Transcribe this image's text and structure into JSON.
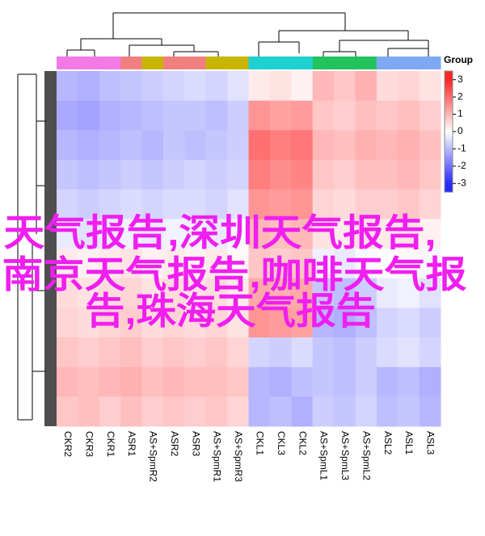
{
  "chart_data": {
    "type": "heatmap",
    "columns": [
      "CKR2",
      "CKR3",
      "CKR1",
      "ASR1",
      "AS+SpmR2",
      "ASR2",
      "ASR3",
      "AS+SpmR1",
      "AS+SpmR3",
      "CKL1",
      "CKL3",
      "CKL2",
      "AS+SpmL1",
      "AS+SpmL3",
      "AS+SpmL2",
      "ASL2",
      "ASL1",
      "ASL3"
    ],
    "group_colors": [
      "#f27ae6",
      "#f27ae6",
      "#f27ae6",
      "#f08080",
      "#c9b500",
      "#f08080",
      "#f08080",
      "#c9b500",
      "#c9b500",
      "#1fd0d0",
      "#1fd0d0",
      "#1fd0d0",
      "#22c25c",
      "#22c25c",
      "#22c25c",
      "#7fa8f2",
      "#7fa8f2",
      "#7fa8f2"
    ],
    "legend_title": "Group",
    "values": [
      [
        -1.0,
        -1.1,
        -0.9,
        -0.8,
        -0.7,
        -0.6,
        -0.5,
        -0.6,
        -0.4,
        0.3,
        0.4,
        0.2,
        1.0,
        0.8,
        1.1,
        0.5,
        0.6,
        0.4
      ],
      [
        -1.2,
        -1.3,
        -1.1,
        -1.0,
        -0.9,
        -0.8,
        -0.8,
        -0.9,
        -0.7,
        1.5,
        1.3,
        1.4,
        0.8,
        0.7,
        0.9,
        0.8,
        0.9,
        0.7
      ],
      [
        -1.0,
        -1.1,
        -1.0,
        -0.9,
        -1.0,
        -0.8,
        -0.9,
        -0.8,
        -0.7,
        2.0,
        1.8,
        1.9,
        1.0,
        0.9,
        1.1,
        1.0,
        1.1,
        0.9
      ],
      [
        -0.8,
        -0.9,
        -0.8,
        -0.7,
        -0.8,
        -0.7,
        -0.6,
        -0.7,
        -0.6,
        1.8,
        1.6,
        1.7,
        0.8,
        0.7,
        0.9,
        0.9,
        1.0,
        0.8
      ],
      [
        -0.6,
        -0.7,
        -0.6,
        -0.5,
        -0.6,
        -0.5,
        -0.5,
        -0.6,
        -0.4,
        1.5,
        1.4,
        1.5,
        0.6,
        0.5,
        0.7,
        0.7,
        0.8,
        0.6
      ],
      [
        -0.3,
        -0.4,
        -0.3,
        -0.2,
        -0.3,
        -0.2,
        -0.2,
        -0.3,
        -0.1,
        1.0,
        0.9,
        1.0,
        0.4,
        0.3,
        0.4,
        0.3,
        0.4,
        0.2
      ],
      [
        0.3,
        0.2,
        0.3,
        0.4,
        0.2,
        0.3,
        0.2,
        0.3,
        0.1,
        0.8,
        0.7,
        0.8,
        -0.2,
        -0.3,
        -0.1,
        0.0,
        0.1,
        -0.1
      ],
      [
        0.5,
        0.4,
        0.5,
        0.6,
        0.4,
        0.5,
        0.4,
        0.5,
        0.3,
        1.2,
        1.1,
        1.2,
        -0.8,
        -0.9,
        -0.7,
        -0.3,
        -0.2,
        -0.4
      ],
      [
        0.6,
        0.5,
        0.6,
        0.7,
        0.5,
        0.6,
        0.5,
        0.6,
        0.4,
        1.5,
        1.4,
        1.3,
        -1.0,
        -1.1,
        -0.9,
        -0.6,
        -0.5,
        -0.7
      ],
      [
        0.8,
        0.7,
        0.8,
        0.9,
        0.7,
        0.8,
        0.7,
        0.8,
        0.6,
        -0.6,
        -0.7,
        -0.5,
        -0.8,
        -0.9,
        -0.7,
        -0.5,
        -0.4,
        -0.6
      ],
      [
        1.0,
        0.9,
        1.0,
        1.1,
        0.9,
        1.0,
        0.9,
        0.9,
        0.8,
        -1.0,
        -1.1,
        -0.9,
        -0.8,
        -0.9,
        -0.7,
        -1.0,
        -0.9,
        -1.1
      ],
      [
        0.8,
        0.9,
        0.7,
        0.9,
        0.7,
        0.8,
        0.7,
        0.8,
        0.6,
        -1.0,
        -0.9,
        -1.1,
        -0.7,
        -0.8,
        -0.6,
        -0.9,
        -0.8,
        -1.0
      ]
    ],
    "zlim": [
      -3.5,
      3.5
    ],
    "zticks": [
      3,
      2,
      1,
      0,
      -1,
      -2,
      -3
    ]
  },
  "watermark_lines": [
    "天气报告,深圳天气报告,",
    "南京天气报告,咖啡天气报",
    "告,珠海天气报告"
  ]
}
